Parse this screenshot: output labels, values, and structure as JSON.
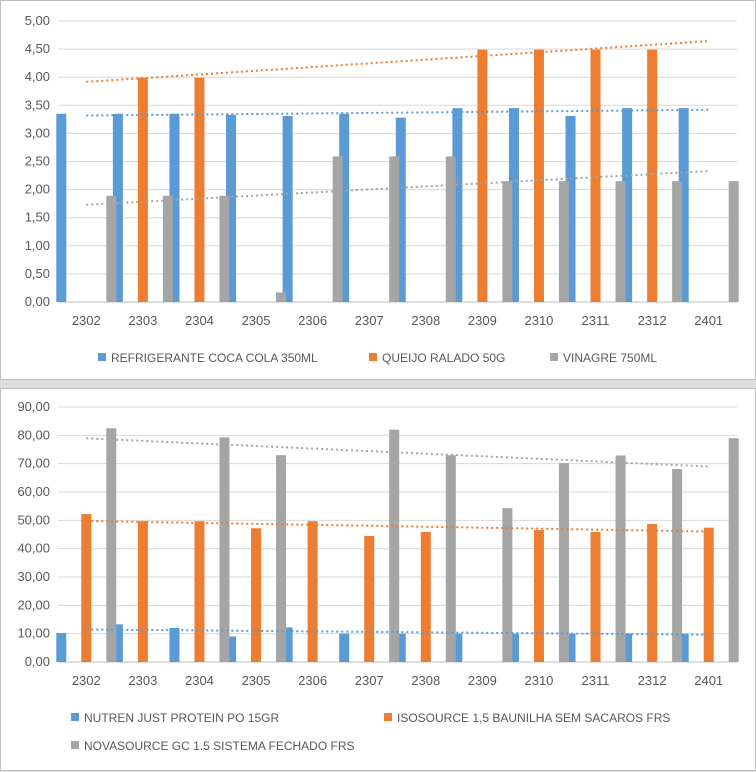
{
  "chart_data": [
    {
      "type": "bar",
      "title": "",
      "xlabel": "",
      "ylabel": "",
      "categories": [
        "2302",
        "2303",
        "2304",
        "2305",
        "2306",
        "2307",
        "2308",
        "2309",
        "2310",
        "2311",
        "2312",
        "2401"
      ],
      "ylim": [
        0,
        5
      ],
      "yticks": [
        "0,00",
        "0,50",
        "1,00",
        "1,50",
        "2,00",
        "2,50",
        "3,00",
        "3,50",
        "4,00",
        "4,50",
        "5,00"
      ],
      "grid": true,
      "legend_position": "bottom",
      "trendlines": "linear",
      "series": [
        {
          "name": "REFRIGERANTE COCA COLA 350ML",
          "color": "#5b9bd5",
          "values": [
            3.35,
            3.35,
            3.35,
            3.33,
            3.31,
            3.35,
            3.28,
            3.45,
            3.45,
            3.31,
            3.45,
            3.45
          ]
        },
        {
          "name": "QUEIJO RALADO 50G",
          "color": "#ed7d31",
          "values": [
            null,
            3.99,
            3.99,
            null,
            null,
            null,
            null,
            4.49,
            4.49,
            4.49,
            4.49,
            null
          ]
        },
        {
          "name": "VINAGRE 750ML",
          "color": "#a5a5a5",
          "values": [
            1.89,
            1.89,
            1.89,
            0.17,
            2.59,
            2.59,
            2.59,
            2.15,
            2.15,
            2.15,
            2.15,
            2.15
          ]
        }
      ]
    },
    {
      "type": "bar",
      "title": "",
      "xlabel": "",
      "ylabel": "",
      "categories": [
        "2302",
        "2303",
        "2304",
        "2305",
        "2306",
        "2307",
        "2308",
        "2309",
        "2310",
        "2311",
        "2312",
        "2401"
      ],
      "ylim": [
        0,
        90
      ],
      "yticks": [
        "0,00",
        "10,00",
        "20,00",
        "30,00",
        "40,00",
        "50,00",
        "60,00",
        "70,00",
        "80,00",
        "90,00"
      ],
      "grid": true,
      "legend_position": "bottom",
      "trendlines": "linear",
      "series": [
        {
          "name": "NUTREN JUST PROTEIN PO 15GR",
          "color": "#5b9bd5",
          "values": [
            10.2,
            13.3,
            12,
            9,
            12.2,
            10,
            10,
            10,
            10,
            10,
            10,
            10
          ]
        },
        {
          "name": "ISOSOURCE 1,5 BAUNILHA SEM SACAROS FRS",
          "color": "#ed7d31",
          "values": [
            52.2,
            49.7,
            49.7,
            47.2,
            49.7,
            44.5,
            45.9,
            null,
            46.6,
            45.9,
            48.7,
            47.4
          ]
        },
        {
          "name": "NOVASOURCE GC 1.5 SISTEMA FECHADO  FRS",
          "color": "#a5a5a5",
          "values": [
            82.5,
            null,
            79.3,
            73,
            null,
            82,
            73,
            54.3,
            70.2,
            72.9,
            68.1,
            79
          ]
        }
      ]
    }
  ]
}
